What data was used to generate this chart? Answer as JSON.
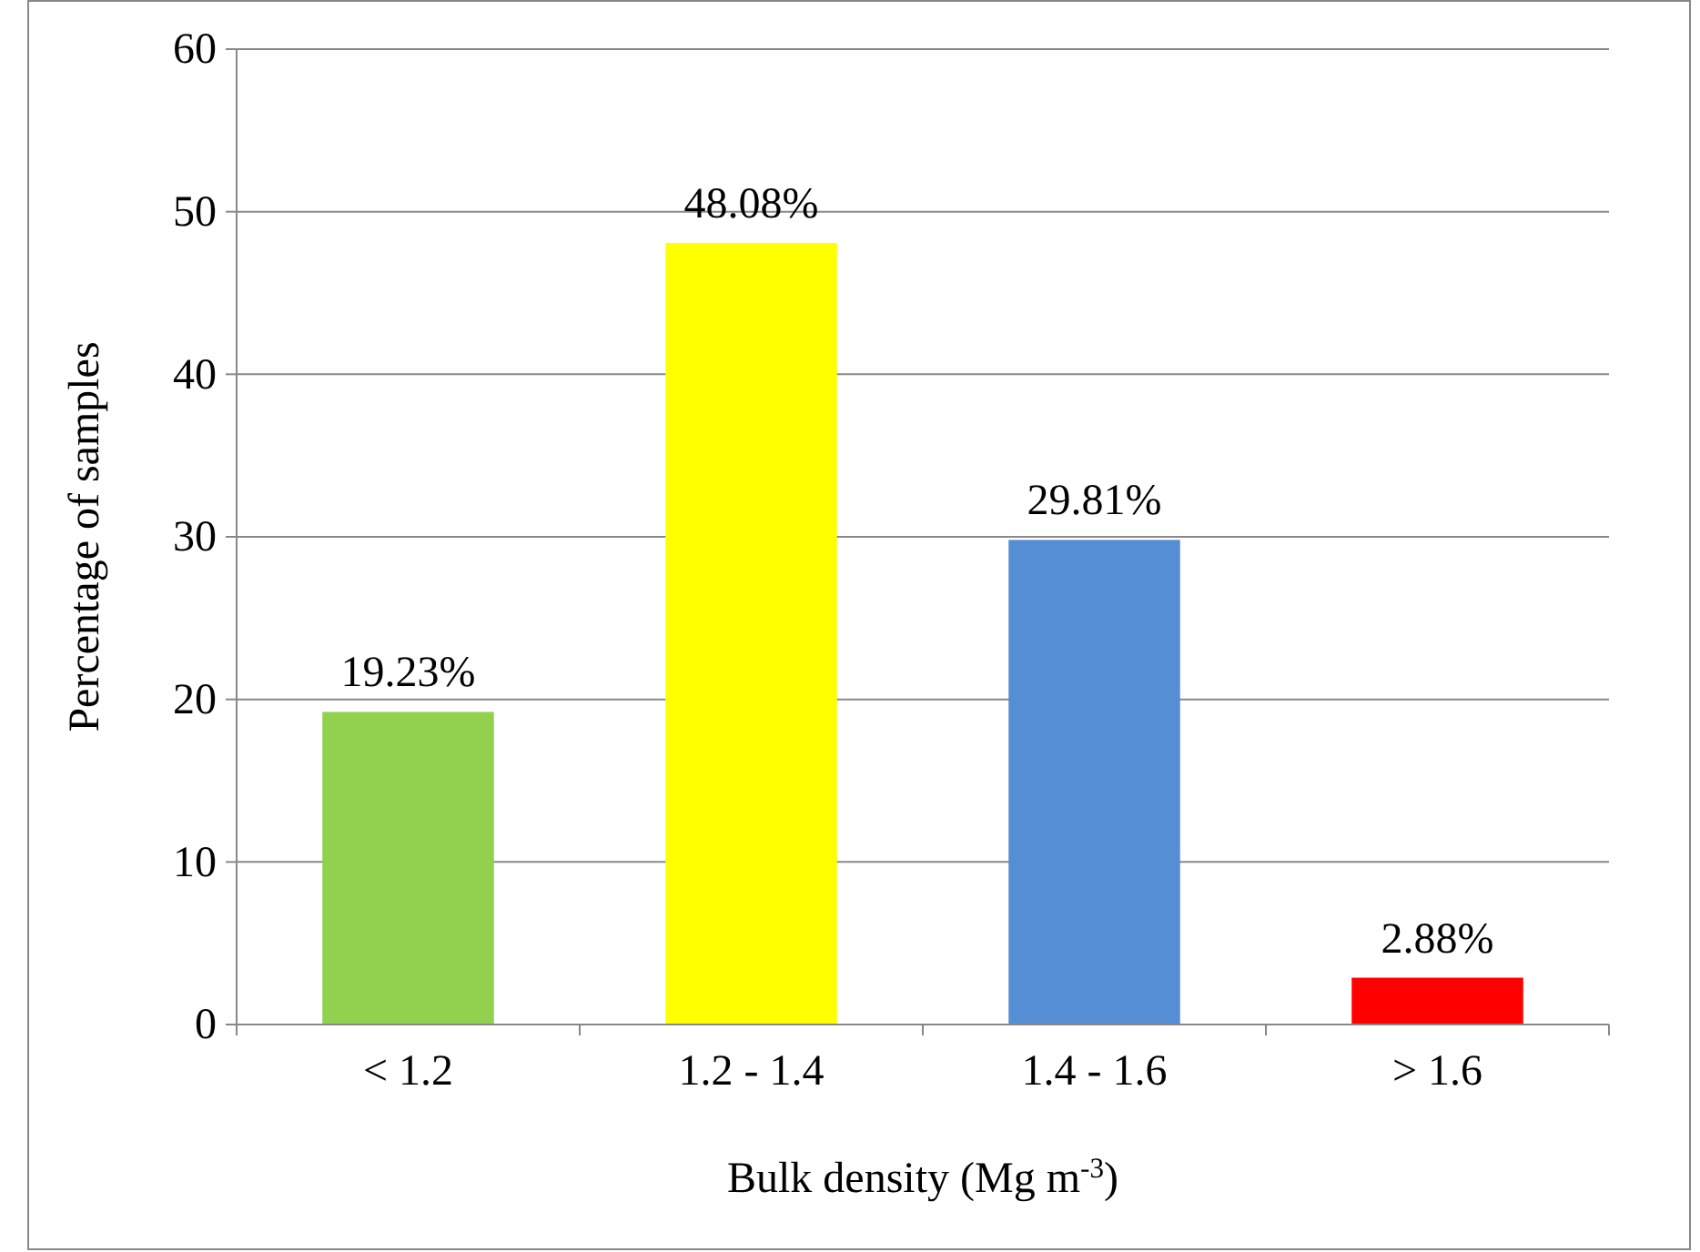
{
  "chart_data": {
    "type": "bar",
    "xlabel": "Bulk density (Mg m$^{-3}$)",
    "ylabel": "Percentage of samples",
    "categories": [
      "< 1.2",
      "1.2 - 1.4",
      "1.4 - 1.6",
      "> 1.6"
    ],
    "values": [
      19.23,
      48.08,
      29.81,
      2.88
    ],
    "colors": [
      "#92d050",
      "#ffff00",
      "#558ed5",
      "#ff0000"
    ],
    "value_labels": [
      "19.23%",
      "48.08%",
      "29.81%",
      "2.88%"
    ],
    "ylim": [
      0,
      60
    ],
    "yticks": [
      0,
      10,
      20,
      30,
      40,
      50,
      60
    ],
    "grid": "y"
  }
}
